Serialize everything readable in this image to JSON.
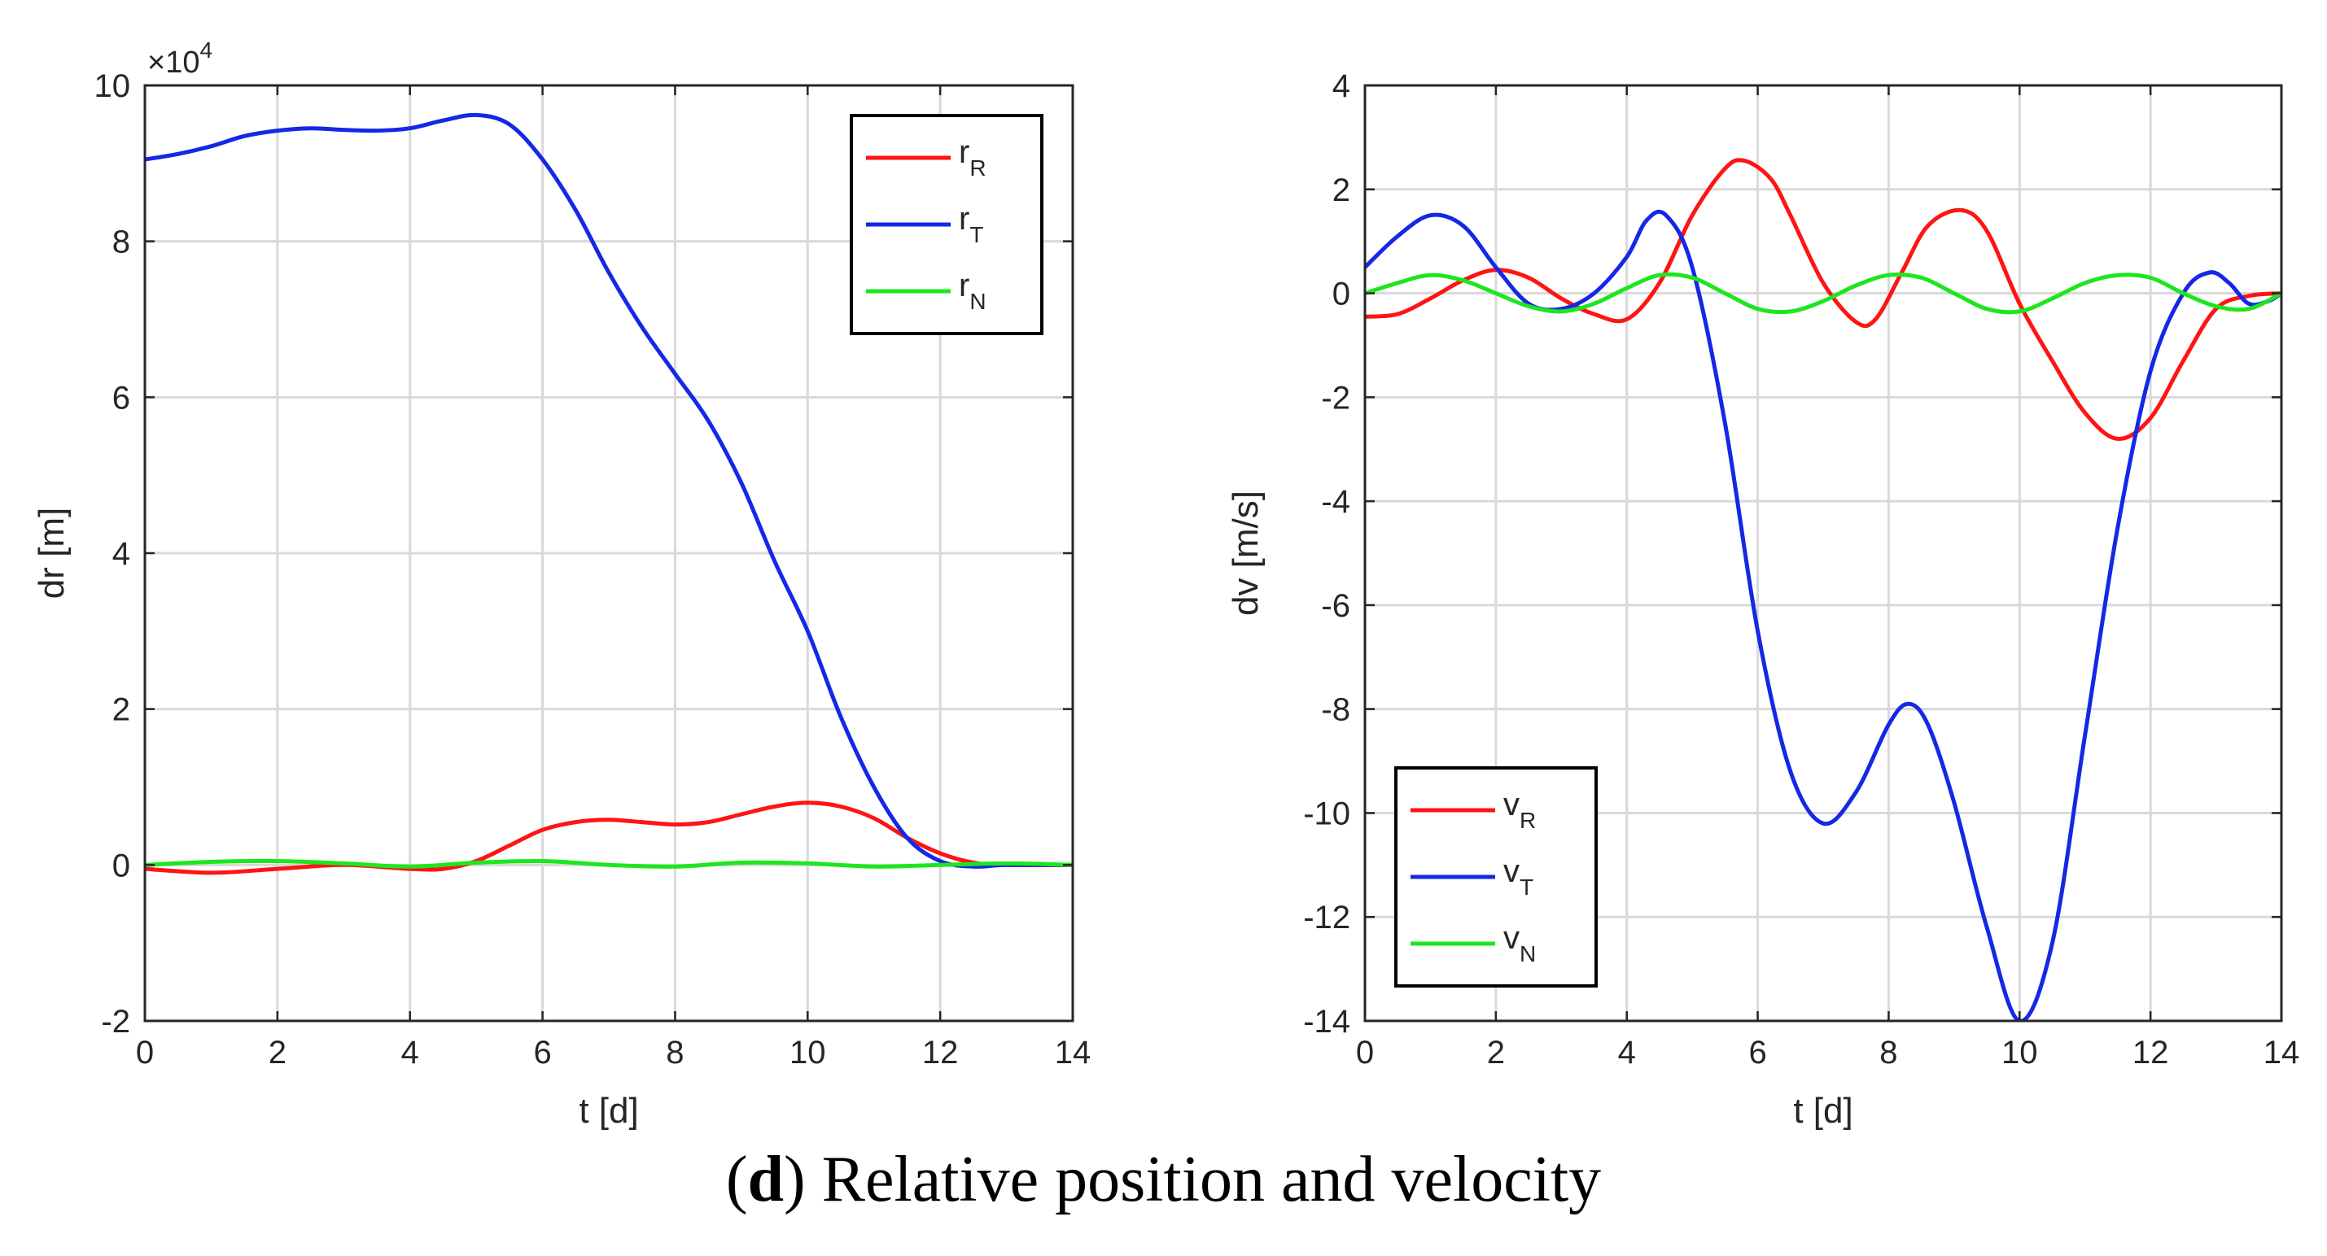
{
  "caption": {
    "letter": "d",
    "text": "Relative position and velocity"
  },
  "colors": {
    "red": "#ff1414",
    "blue": "#1428e6",
    "green": "#1ee61e",
    "grid": "#d9d9d9",
    "axis": "#262626"
  },
  "chart_data": [
    {
      "type": "line",
      "xlabel": "t [d]",
      "ylabel": "dr [m]",
      "y_scale_label": "×10",
      "y_scale_exponent": "4",
      "xlim": [
        0,
        14
      ],
      "ylim": [
        -2,
        10
      ],
      "xticks": [
        0,
        2,
        4,
        6,
        8,
        10,
        12,
        14
      ],
      "yticks": [
        -2,
        0,
        2,
        4,
        6,
        8,
        10
      ],
      "legend_position": "top-right",
      "series": [
        {
          "name": "r",
          "sub": "R",
          "color": "#ff1414",
          "x": [
            0,
            1,
            2,
            3,
            4,
            4.5,
            5,
            5.5,
            6,
            6.5,
            7,
            7.5,
            8,
            8.5,
            9,
            9.5,
            10,
            10.5,
            11,
            11.5,
            12,
            12.5,
            13,
            14
          ],
          "y": [
            -0.05,
            -0.1,
            -0.05,
            0,
            -0.05,
            -0.05,
            0.05,
            0.25,
            0.45,
            0.55,
            0.58,
            0.55,
            0.52,
            0.55,
            0.65,
            0.75,
            0.8,
            0.75,
            0.6,
            0.35,
            0.15,
            0.03,
            0,
            0
          ]
        },
        {
          "name": "r",
          "sub": "T",
          "color": "#1428e6",
          "x": [
            0,
            0.5,
            1,
            1.5,
            2,
            2.5,
            3,
            3.5,
            4,
            4.5,
            5,
            5.5,
            6,
            6.5,
            7,
            7.5,
            8,
            8.5,
            9,
            9.5,
            10,
            10.5,
            11,
            11.5,
            12,
            12.5,
            13,
            14
          ],
          "y": [
            9.05,
            9.12,
            9.22,
            9.35,
            9.42,
            9.45,
            9.43,
            9.42,
            9.45,
            9.55,
            9.62,
            9.5,
            9.05,
            8.4,
            7.6,
            6.9,
            6.3,
            5.7,
            4.9,
            3.9,
            3.0,
            1.9,
            1.0,
            0.35,
            0.05,
            -0.02,
            0,
            0
          ]
        },
        {
          "name": "r",
          "sub": "N",
          "color": "#1ee61e",
          "x": [
            0,
            1,
            2,
            3,
            4,
            5,
            6,
            7,
            8,
            9,
            10,
            11,
            12,
            13,
            14
          ],
          "y": [
            0,
            0.04,
            0.05,
            0.02,
            -0.02,
            0.03,
            0.05,
            0,
            -0.02,
            0.03,
            0.02,
            -0.02,
            0,
            0.02,
            0
          ]
        }
      ]
    },
    {
      "type": "line",
      "xlabel": "t [d]",
      "ylabel": "dv [m/s]",
      "xlim": [
        0,
        14
      ],
      "ylim": [
        -14,
        4
      ],
      "xticks": [
        0,
        2,
        4,
        6,
        8,
        10,
        12,
        14
      ],
      "yticks": [
        -14,
        -12,
        -10,
        -8,
        -6,
        -4,
        -2,
        0,
        2,
        4
      ],
      "legend_position": "bottom-left",
      "series": [
        {
          "name": "v",
          "sub": "R",
          "color": "#ff1414",
          "x": [
            0,
            0.5,
            1,
            1.5,
            2,
            2.5,
            3,
            3.5,
            4,
            4.5,
            5,
            5.5,
            5.8,
            6.2,
            6.5,
            7,
            7.5,
            7.8,
            8.2,
            8.6,
            9.1,
            9.5,
            10,
            10.5,
            11,
            11.5,
            12,
            12.5,
            13,
            13.5,
            14
          ],
          "y": [
            -0.45,
            -0.4,
            -0.1,
            0.25,
            0.45,
            0.3,
            -0.1,
            -0.4,
            -0.5,
            0.2,
            1.5,
            2.4,
            2.55,
            2.2,
            1.5,
            0.2,
            -0.55,
            -0.5,
            0.4,
            1.3,
            1.6,
            1.2,
            -0.2,
            -1.3,
            -2.3,
            -2.8,
            -2.4,
            -1.3,
            -0.3,
            -0.05,
            0
          ]
        },
        {
          "name": "v",
          "sub": "T",
          "color": "#1428e6",
          "x": [
            0,
            0.5,
            1,
            1.5,
            2,
            2.5,
            3,
            3.5,
            4,
            4.3,
            4.6,
            5,
            5.5,
            6,
            6.5,
            7,
            7.5,
            8,
            8.3,
            8.6,
            9,
            9.5,
            10,
            10.5,
            11,
            11.5,
            12,
            12.5,
            12.9,
            13.2,
            13.5,
            13.8,
            14
          ],
          "y": [
            0.5,
            1.1,
            1.5,
            1.3,
            0.5,
            -0.2,
            -0.3,
            0,
            0.7,
            1.4,
            1.5,
            0.5,
            -2.5,
            -6.5,
            -9.2,
            -10.2,
            -9.6,
            -8.3,
            -7.9,
            -8.3,
            -9.8,
            -12.2,
            -14.0,
            -12.5,
            -8.5,
            -4.5,
            -1.5,
            0,
            0.4,
            0.2,
            -0.2,
            -0.15,
            0
          ]
        },
        {
          "name": "v",
          "sub": "N",
          "color": "#1ee61e",
          "x": [
            0,
            0.5,
            1,
            1.5,
            2,
            2.5,
            3,
            3.5,
            4,
            4.5,
            5,
            5.5,
            6,
            6.5,
            7,
            7.5,
            8,
            8.5,
            9,
            9.5,
            10,
            10.5,
            11,
            11.5,
            12,
            12.5,
            13,
            13.5,
            14
          ],
          "y": [
            0,
            0.2,
            0.35,
            0.25,
            0,
            -0.25,
            -0.35,
            -0.2,
            0.1,
            0.35,
            0.3,
            0,
            -0.3,
            -0.35,
            -0.15,
            0.15,
            0.35,
            0.3,
            0,
            -0.3,
            -0.35,
            -0.1,
            0.2,
            0.35,
            0.3,
            0,
            -0.25,
            -0.3,
            0
          ]
        }
      ]
    }
  ]
}
